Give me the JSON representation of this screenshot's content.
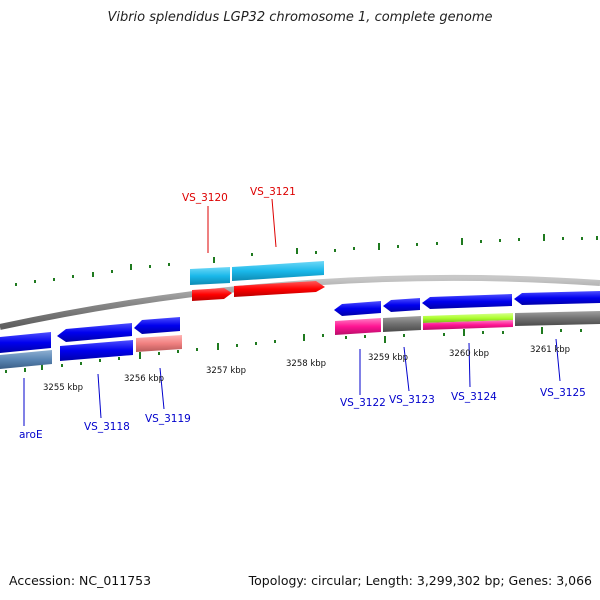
{
  "title": "Vibrio splendidus LGP32 chromosome 1, complete genome",
  "footer": {
    "accession": "Accession: NC_011753",
    "summary": "Topology: circular; Length: 3,299,302 bp; Genes: 3,066"
  },
  "scale_labels": [
    "3255 kbp",
    "3256 kbp",
    "3257 kbp",
    "3258 kbp",
    "3259 kbp",
    "3260 kbp",
    "3261 kbp"
  ],
  "top_genes": [
    {
      "name": "VS_3120",
      "color": "#dd0000"
    },
    {
      "name": "VS_3121",
      "color": "#dd0000"
    }
  ],
  "bottom_genes": [
    {
      "name": "aroE",
      "color": "#0000cc"
    },
    {
      "name": "VS_3118",
      "color": "#0000cc"
    },
    {
      "name": "VS_3119",
      "color": "#0000cc"
    },
    {
      "name": "VS_3122",
      "color": "#0000cc"
    },
    {
      "name": "VS_3123",
      "color": "#0000cc"
    },
    {
      "name": "VS_3124",
      "color": "#0000cc"
    },
    {
      "name": "VS_3125",
      "color": "#0000cc"
    }
  ],
  "colors": {
    "backbone": "#8a8a8a",
    "forward_gene": "#ff0000",
    "forward_product": "#1ab8ea",
    "reverse_gene": "#0000ee",
    "tick": "#1f7a1f",
    "label_blue": "#0000cc",
    "label_red": "#dd0000"
  }
}
